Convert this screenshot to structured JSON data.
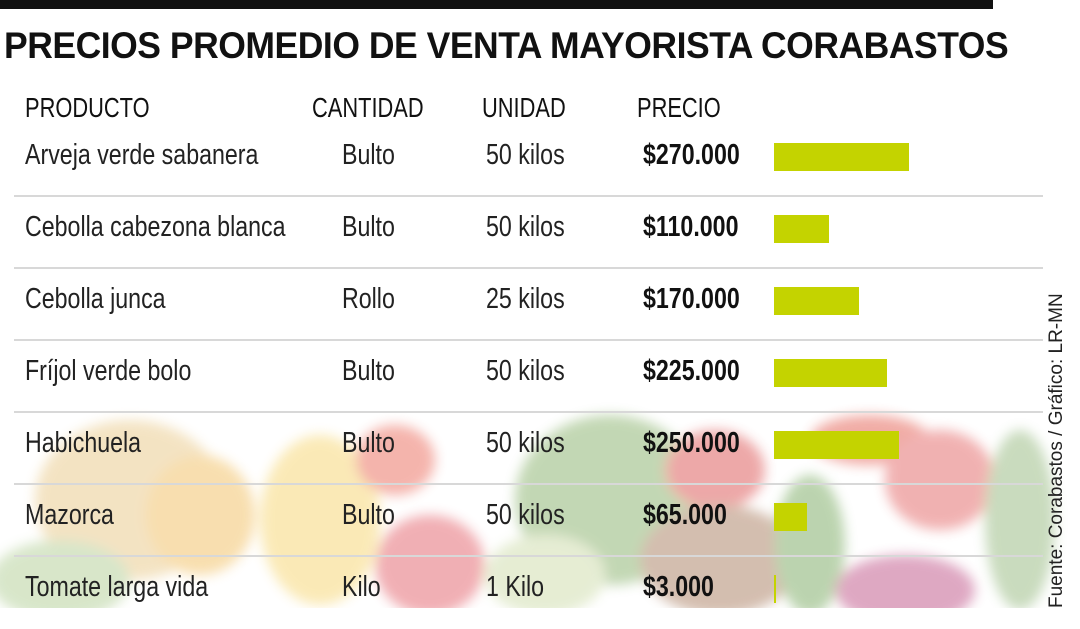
{
  "title": "PRECIOS PROMEDIO DE VENTA MAYORISTA CORABASTOS",
  "headers": {
    "product": "PRODUCTO",
    "quantity": "CANTIDAD",
    "unit": "UNIDAD",
    "price": "PRECIO"
  },
  "source": "Fuente: Corabastos / Gráfico: LR-MN",
  "colors": {
    "bar": "#c4d300",
    "text": "#111111",
    "divider": "#d8d8d8"
  },
  "chart_data": {
    "type": "bar",
    "title": "PRECIOS PROMEDIO DE VENTA MAYORISTA CORABASTOS",
    "categories": [
      "Arveja verde sabanera",
      "Cebolla cabezona blanca",
      "Cebolla junca",
      "Fríjol verde bolo",
      "Habichuela",
      "Mazorca",
      "Tomate larga vida"
    ],
    "values": [
      270000,
      110000,
      170000,
      225000,
      250000,
      65000,
      3000
    ],
    "rows": [
      {
        "product": "Arveja verde sabanera",
        "quantity": "Bulto",
        "unit": "50 kilos",
        "price": "$270.000",
        "value": 270000
      },
      {
        "product": "Cebolla cabezona blanca",
        "quantity": "Bulto",
        "unit": "50 kilos",
        "price": "$110.000",
        "value": 110000
      },
      {
        "product": "Cebolla junca",
        "quantity": "Rollo",
        "unit": "25 kilos",
        "price": "$170.000",
        "value": 170000
      },
      {
        "product": "Fríjol verde bolo",
        "quantity": "Bulto",
        "unit": "50 kilos",
        "price": "$225.000",
        "value": 225000
      },
      {
        "product": "Habichuela",
        "quantity": "Bulto",
        "unit": "50 kilos",
        "price": "$250.000",
        "value": 250000
      },
      {
        "product": "Mazorca",
        "quantity": "Bulto",
        "unit": "50 kilos",
        "price": "$65.000",
        "value": 65000
      },
      {
        "product": "Tomate larga vida",
        "quantity": "Kilo",
        "unit": "1 Kilo",
        "price": "$3.000",
        "value": 3000
      }
    ],
    "orientation": "horizontal",
    "xlim": [
      0,
      270000
    ],
    "grid": false,
    "legend": "none"
  }
}
